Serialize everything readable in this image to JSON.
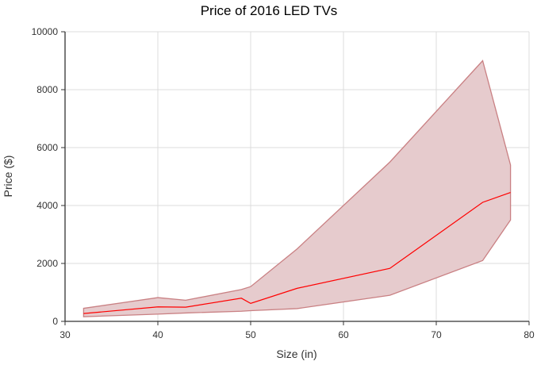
{
  "chart_data": {
    "type": "area",
    "title": "Price of 2016 LED TVs",
    "xlabel": "Size (in)",
    "ylabel": "Price ($)",
    "xlim": [
      30,
      80
    ],
    "ylim": [
      0,
      10000
    ],
    "xticks": [
      30,
      40,
      50,
      60,
      70,
      80
    ],
    "yticks": [
      0,
      2000,
      4000,
      6000,
      8000,
      10000
    ],
    "grid": true,
    "x": [
      32,
      40,
      43,
      49,
      50,
      55,
      65,
      75,
      78
    ],
    "series": [
      {
        "role": "mean",
        "values": [
          270,
          500,
          490,
          800,
          620,
          1140,
          1830,
          4110,
          4450
        ]
      },
      {
        "role": "upper",
        "values": [
          450,
          820,
          730,
          1100,
          1200,
          2500,
          5500,
          9000,
          5400
        ]
      },
      {
        "role": "lower",
        "values": [
          160,
          250,
          290,
          350,
          370,
          440,
          900,
          2100,
          3500
        ]
      }
    ],
    "colors": {
      "line": "#ff0000",
      "band_fill": "#e6cbcd",
      "band_stroke": "#c98083"
    }
  }
}
